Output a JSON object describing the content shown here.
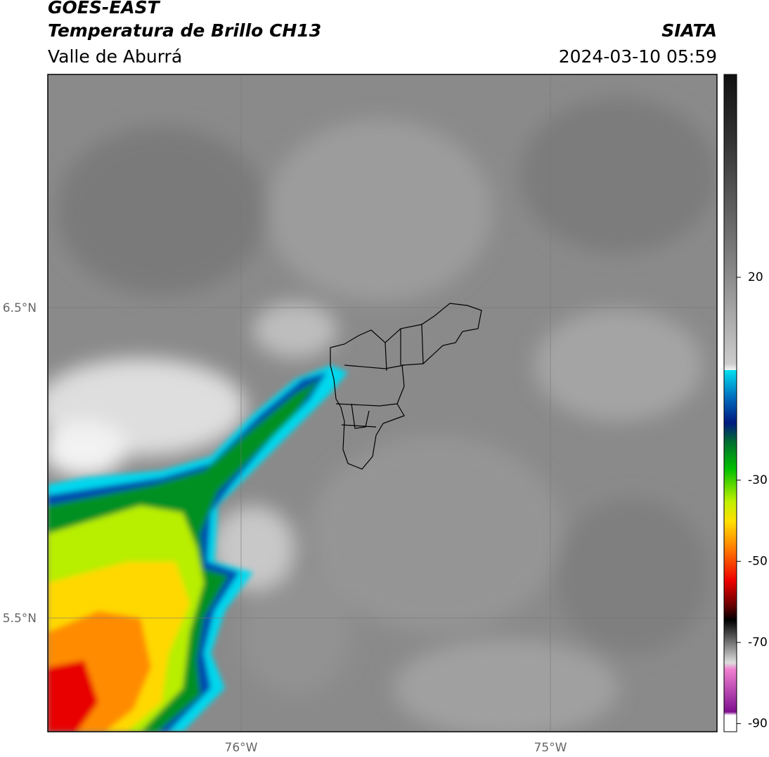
{
  "header": {
    "title": "GOES-EAST",
    "subtitle": "Temperatura de Brillo CH13",
    "region": "Valle de Aburrá",
    "source": "SIATA",
    "datetime": "2024-03-10 05:59"
  },
  "map": {
    "lat_labels": [
      "6.5°N",
      "5.5°N"
    ],
    "lon_labels": [
      "76°W",
      "75°W"
    ]
  },
  "colorbar": {
    "lim": [
      -92,
      70
    ],
    "ticks": [
      20,
      -30,
      -50,
      -70,
      -90
    ]
  }
}
